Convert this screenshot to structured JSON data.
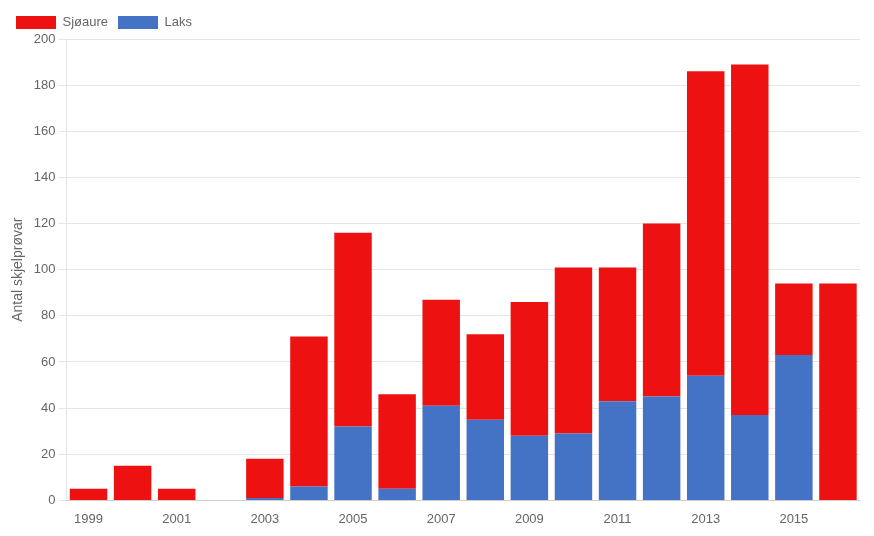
{
  "chart_data": {
    "type": "bar",
    "stacked": true,
    "categories": [
      "1999",
      null,
      "2001",
      null,
      "2003",
      null,
      "2005",
      null,
      "2007",
      null,
      "2009",
      null,
      "2011",
      null,
      "2013",
      null,
      "2015",
      null
    ],
    "series": [
      {
        "name": "Laks",
        "color": "#4472c4",
        "values": [
          0,
          0,
          0,
          0,
          1,
          6,
          32,
          5,
          41,
          35,
          28,
          29,
          43,
          45,
          54,
          37,
          63,
          0
        ]
      },
      {
        "name": "Sjøaure",
        "color": "#ee1111",
        "values": [
          5,
          15,
          5,
          0,
          17,
          65,
          84,
          41,
          46,
          37,
          58,
          72,
          58,
          75,
          132,
          152,
          31,
          94
        ]
      }
    ],
    "y_label": "Antal skjelprøvar",
    "ylim": [
      0,
      200
    ],
    "yticks": [
      0,
      20,
      40,
      60,
      80,
      100,
      120,
      140,
      160,
      180,
      200
    ],
    "grid": true,
    "legend": "upper left"
  }
}
